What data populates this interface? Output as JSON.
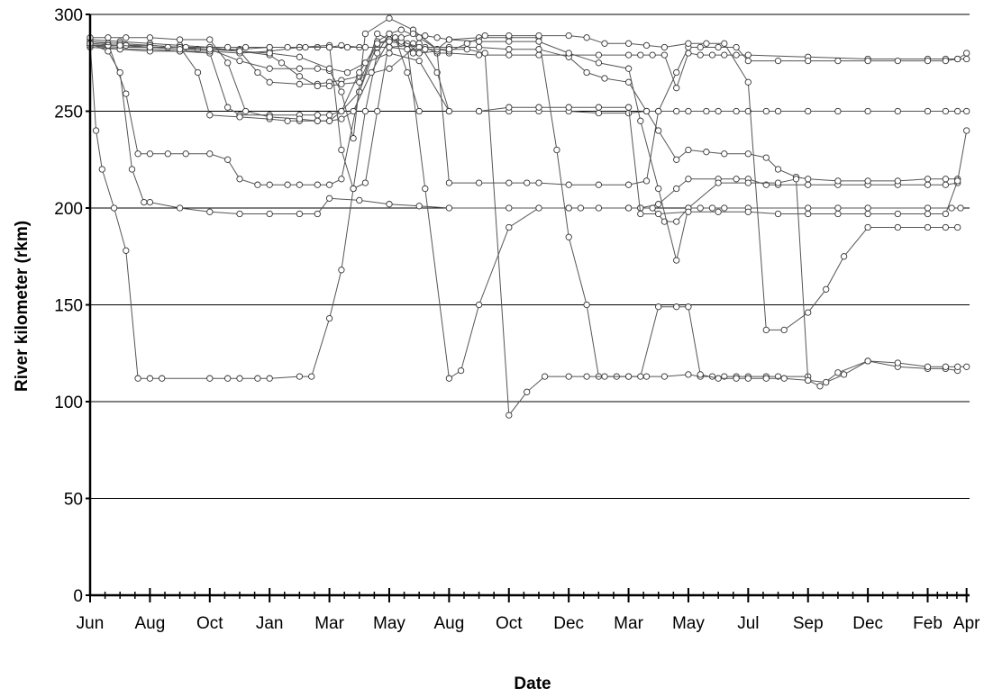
{
  "chart_data": {
    "type": "line",
    "title": "",
    "xlabel": "Date",
    "ylabel": "River kilometer (rkm)",
    "ylim": [
      0,
      300
    ],
    "yticks": [
      0,
      50,
      100,
      150,
      200,
      250,
      300
    ],
    "xlim": [
      0,
      14.7
    ],
    "xticks": [
      {
        "x": 0,
        "label": "Jun"
      },
      {
        "x": 1,
        "label": "Aug"
      },
      {
        "x": 2,
        "label": "Oct"
      },
      {
        "x": 3,
        "label": "Jan"
      },
      {
        "x": 4,
        "label": "Mar"
      },
      {
        "x": 5,
        "label": "May"
      },
      {
        "x": 6,
        "label": "Aug"
      },
      {
        "x": 7,
        "label": "Oct"
      },
      {
        "x": 8,
        "label": "Dec"
      },
      {
        "x": 9,
        "label": "Mar"
      },
      {
        "x": 10,
        "label": "May"
      },
      {
        "x": 11,
        "label": "Jul"
      },
      {
        "x": 12,
        "label": "Sep"
      },
      {
        "x": 13,
        "label": "Dec"
      },
      {
        "x": 14,
        "label": "Feb"
      },
      {
        "x": 14.65,
        "label": "Apr"
      }
    ],
    "grid": "horizontal",
    "minor_ticks_per_major": 4,
    "series": [
      {
        "x": [
          0,
          0.1,
          0.2,
          0.4,
          0.6,
          0.8,
          1.0,
          1.2,
          2.0,
          2.3,
          2.5,
          2.8,
          3.0,
          3.5,
          3.7,
          4.0,
          4.2,
          4.4,
          4.6,
          4.8,
          5.0,
          5.1,
          5.3,
          5.5
        ],
        "y": [
          285,
          240,
          220,
          200,
          178,
          112,
          112,
          112,
          112,
          112,
          112,
          112,
          112,
          113,
          113,
          143,
          168,
          210,
          250,
          280,
          290,
          288,
          270,
          250
        ]
      },
      {
        "x": [
          0,
          0.3,
          0.6,
          0.8,
          1.0,
          1.3,
          1.6,
          2.0,
          2.3,
          2.5,
          2.8,
          3.0,
          3.3,
          3.5,
          3.8,
          4.0,
          4.2,
          4.5,
          4.8,
          5.0,
          5.2,
          5.4,
          5.5
        ],
        "y": [
          286,
          285,
          259,
          228,
          228,
          228,
          228,
          228,
          225,
          215,
          212,
          212,
          212,
          212,
          212,
          212,
          215,
          260,
          290,
          287,
          286,
          280,
          280
        ]
      },
      {
        "x": [
          0,
          0.3,
          0.5,
          0.7,
          0.9,
          1.0,
          1.5,
          2.0,
          2.5,
          3.0,
          3.5,
          3.8,
          4.0,
          4.5,
          5.0,
          5.5,
          6.0,
          7.0,
          8.0,
          9.0,
          9.2,
          9.4,
          9.6,
          9.8,
          10.0,
          10.2,
          10.4,
          10.6,
          11.0,
          12.0,
          12.5,
          13.0,
          14.0,
          14.4,
          14.55
        ],
        "y": [
          285,
          281,
          270,
          220,
          203,
          203,
          200,
          198,
          197,
          197,
          197,
          197,
          205,
          204,
          202,
          201,
          200,
          200,
          200,
          200,
          200,
          200,
          193,
          193,
          200,
          200,
          200,
          200,
          200,
          200,
          200,
          200,
          200,
          200,
          200
        ]
      },
      {
        "x": [
          0,
          0.5,
          1.0,
          1.5,
          2.0,
          2.3,
          2.5,
          3.0,
          3.5,
          3.8,
          4.0,
          4.2,
          4.5,
          4.8,
          5.0,
          5.2,
          5.4,
          5.6,
          5.8,
          6.0,
          6.5,
          7.0,
          7.5,
          8.0,
          8.5,
          9.0,
          9.2,
          9.4,
          9.6,
          9.8,
          10.0,
          10.2,
          10.4,
          10.6,
          10.8,
          11.0,
          12.0,
          13.0,
          14.0,
          14.3,
          14.5,
          14.65
        ],
        "y": [
          284,
          282,
          282,
          281,
          280,
          252,
          248,
          248,
          248,
          248,
          248,
          250,
          260,
          285,
          286,
          285,
          285,
          283,
          280,
          280,
          279,
          279,
          279,
          279,
          279,
          279,
          279,
          279,
          279,
          262,
          280,
          279,
          279,
          279,
          279,
          279,
          278,
          277,
          277,
          277,
          277,
          277
        ]
      },
      {
        "x": [
          0,
          0.5,
          1.0,
          1.5,
          2.0,
          2.5,
          2.8,
          3.0,
          3.5,
          3.8,
          4.0,
          4.2,
          4.5,
          5.0,
          5.5,
          5.8,
          6.0,
          6.5,
          7.0,
          7.5,
          8.0,
          8.5,
          9.0,
          9.3,
          9.5,
          9.8,
          10.0,
          10.3,
          10.5,
          10.8,
          11.0,
          11.3,
          11.5,
          12.0,
          12.5,
          13.0,
          13.5,
          14.0,
          14.3,
          14.5,
          14.65
        ],
        "y": [
          287,
          286,
          285,
          284,
          283,
          281,
          270,
          265,
          264,
          264,
          265,
          266,
          268,
          272,
          285,
          270,
          250,
          250,
          250,
          250,
          250,
          249,
          249,
          250,
          250,
          250,
          250,
          250,
          250,
          250,
          250,
          250,
          250,
          250,
          250,
          250,
          250,
          250,
          250,
          250,
          250
        ]
      },
      {
        "x": [
          0,
          0.5,
          1.0,
          1.5,
          2.0,
          2.5,
          3.0,
          3.5,
          3.8,
          4.0,
          4.2,
          4.5,
          4.8,
          5.0,
          5.3,
          5.6,
          6.0,
          6.2,
          6.5,
          7.0,
          7.5,
          8.0,
          8.2,
          8.5,
          9.0,
          9.2,
          9.5,
          9.8,
          10.0,
          10.5,
          10.8,
          11.0,
          11.3,
          11.5,
          12.0,
          12.5,
          13.0,
          13.5,
          14.0,
          14.3,
          14.5
        ],
        "y": [
          284,
          283,
          283,
          282,
          282,
          282,
          283,
          283,
          283,
          283,
          284,
          283,
          283,
          283,
          284,
          210,
          112,
          116,
          150,
          190,
          200,
          200,
          200,
          200,
          200,
          200,
          202,
          210,
          215,
          215,
          215,
          215,
          212,
          212,
          212,
          212,
          212,
          212,
          212,
          212,
          213
        ]
      },
      {
        "x": [
          0,
          0.5,
          1.0,
          1.5,
          1.8,
          2.0,
          2.5,
          3.0,
          3.3,
          3.5,
          3.8,
          4.0,
          4.2,
          4.4,
          4.7,
          5.0,
          5.3,
          5.5,
          5.8,
          6.0,
          6.5,
          7.0,
          7.3,
          7.5,
          8.0,
          8.5,
          9.0,
          9.3,
          9.5,
          9.8,
          10.0,
          10.2,
          10.5,
          10.8,
          11.0,
          11.5,
          12.0,
          12.5,
          13.0,
          13.5,
          14.0,
          14.3,
          14.5,
          14.65
        ],
        "y": [
          285,
          284,
          284,
          283,
          270,
          248,
          247,
          246,
          245,
          245,
          245,
          245,
          246,
          250,
          270,
          287,
          285,
          280,
          281,
          213,
          213,
          213,
          213,
          213,
          212,
          212,
          212,
          214,
          250,
          270,
          283,
          283,
          283,
          283,
          276,
          276,
          276,
          276,
          276,
          276,
          276,
          276,
          277,
          280
        ]
      },
      {
        "x": [
          0,
          0.5,
          1.0,
          1.5,
          1.8,
          2.0,
          2.5,
          3.0,
          3.5,
          3.8,
          4.0,
          4.2,
          4.4,
          4.6,
          5.0,
          5.4,
          5.8,
          6.0,
          6.5,
          7.0,
          7.5,
          7.8,
          8.0,
          8.3,
          8.5,
          8.8,
          9.0,
          9.3,
          9.6,
          10.0,
          10.2,
          10.4,
          10.6,
          10.8,
          11.0,
          11.3,
          11.5,
          12.0
        ],
        "y": [
          286,
          285,
          284,
          283,
          282,
          282,
          276,
          272,
          272,
          272,
          271,
          260,
          236,
          290,
          298,
          292,
          282,
          287,
          288,
          288,
          288,
          230,
          185,
          150,
          113,
          113,
          113,
          113,
          113,
          114,
          113,
          113,
          113,
          113,
          113,
          113,
          113,
          113
        ]
      },
      {
        "x": [
          0,
          0.5,
          1.0,
          1.5,
          2.0,
          2.5,
          3.0,
          3.2,
          3.5,
          3.8,
          4.0,
          4.2,
          4.5,
          4.8,
          5.0,
          5.2,
          5.5,
          5.8,
          6.0,
          6.3,
          6.6,
          7.0,
          7.5,
          8.0,
          8.3,
          8.6,
          9.0,
          9.3,
          9.6,
          10.0,
          10.3,
          10.6,
          11.0,
          11.3,
          11.6,
          12.0,
          12.3,
          12.6,
          13.0,
          13.5,
          14.0,
          14.3,
          14.5
        ],
        "y": [
          285,
          284,
          283,
          283,
          282,
          281,
          279,
          275,
          268,
          263,
          263,
          264,
          265,
          286,
          290,
          292,
          288,
          282,
          281,
          285,
          289,
          289,
          289,
          289,
          288,
          285,
          285,
          284,
          283,
          285,
          285,
          285,
          265,
          137,
          137,
          146,
          158,
          175,
          190,
          190,
          190,
          190,
          190
        ]
      },
      {
        "x": [
          0,
          0.3,
          0.6,
          1.0,
          1.5,
          2.0,
          2.3,
          2.6,
          3.0,
          3.5,
          3.8,
          4.0,
          4.2,
          4.5,
          4.8,
          5.0,
          5.2,
          5.5,
          6.0,
          6.5,
          7.0,
          7.5,
          8.0,
          8.3,
          8.6,
          9.0,
          9.3,
          9.5,
          9.8,
          10.0,
          10.3,
          10.6,
          11.0,
          11.3,
          11.5,
          11.8,
          12.0,
          12.5,
          13.0,
          13.5,
          14.0,
          14.3,
          14.5
        ],
        "y": [
          288,
          288,
          288,
          288,
          287,
          287,
          275,
          250,
          247,
          246,
          245,
          245,
          250,
          270,
          285,
          287,
          286,
          283,
          283,
          283,
          282,
          282,
          278,
          270,
          267,
          265,
          250,
          240,
          225,
          230,
          229,
          228,
          228,
          226,
          220,
          216,
          215,
          214,
          214,
          214,
          215,
          215,
          215
        ]
      },
      {
        "x": [
          0,
          0.5,
          1.0,
          1.5,
          2.0,
          2.5,
          3.0,
          3.5,
          4.0,
          4.2,
          4.4,
          4.6,
          4.8,
          5.0,
          5.2,
          5.4,
          5.6,
          5.8,
          6.0,
          6.5,
          7.0,
          7.5,
          8.0,
          8.5,
          9.0,
          9.2,
          9.5,
          9.8,
          10.0,
          10.5,
          11.0,
          11.5,
          11.8,
          12.0,
          12.2,
          12.5,
          13.0,
          13.5,
          14.0,
          14.3,
          14.5
        ],
        "y": [
          283,
          282,
          281,
          281,
          281,
          280,
          281,
          283,
          284,
          230,
          210,
          213,
          250,
          286,
          288,
          290,
          289,
          288,
          287,
          286,
          286,
          286,
          280,
          275,
          272,
          245,
          210,
          173,
          200,
          213,
          213,
          213,
          215,
          111,
          108,
          115,
          121,
          118,
          117,
          117,
          116
        ]
      },
      {
        "x": [
          0,
          0.3,
          0.6,
          1.0,
          1.3,
          1.6,
          2.0,
          2.3,
          2.6,
          3.0,
          3.3,
          3.6,
          4.0,
          4.3,
          4.6,
          5.0,
          5.3,
          5.6,
          6.0,
          6.3,
          6.6,
          7.0,
          7.3,
          7.6,
          8.0,
          8.3,
          8.6,
          9.0,
          9.2,
          9.5,
          9.8,
          10.0,
          10.2,
          10.5,
          10.8,
          11.0,
          11.3,
          11.6,
          12.0,
          12.3,
          12.6,
          13.0,
          13.5,
          14.0,
          14.3,
          14.5,
          14.65
        ],
        "y": [
          284,
          284,
          284,
          283,
          283,
          283,
          283,
          283,
          283,
          283,
          283,
          283,
          283,
          283,
          283,
          283,
          282,
          282,
          282,
          282,
          280,
          93,
          105,
          113,
          113,
          113,
          113,
          113,
          113,
          149,
          149,
          149,
          114,
          112,
          112,
          112,
          112,
          112,
          111,
          110,
          114,
          121,
          120,
          118,
          118,
          118,
          118
        ]
      },
      {
        "x": [
          0,
          0.5,
          1.0,
          1.5,
          2.0,
          2.5,
          3.0,
          3.5,
          4.0,
          4.3,
          4.6,
          5.0,
          5.5,
          6.0,
          6.5,
          7.0,
          7.5,
          8.0,
          8.5,
          9.0,
          9.2,
          9.5,
          10.0,
          10.5,
          11.0,
          11.5,
          12.0,
          12.5,
          13.0,
          13.5,
          14.0,
          14.3,
          14.5,
          14.65
        ],
        "y": [
          285,
          284,
          283,
          282,
          282,
          281,
          280,
          278,
          272,
          270,
          275,
          280,
          276,
          250,
          250,
          252,
          252,
          252,
          252,
          252,
          197,
          197,
          198,
          198,
          198,
          197,
          197,
          197,
          197,
          197,
          197,
          197,
          214,
          240
        ]
      }
    ]
  }
}
